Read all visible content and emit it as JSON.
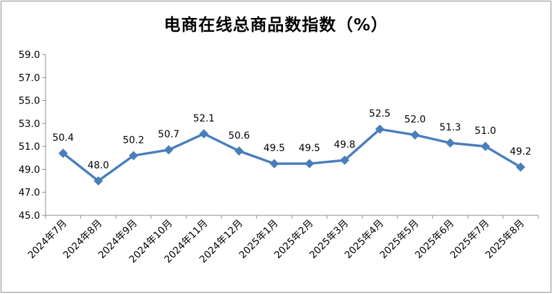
{
  "chart_data": {
    "type": "line",
    "title": "电商在线总商品数指数（%）",
    "categories": [
      "2024年7月",
      "2024年8月",
      "2024年9月",
      "2024年10月",
      "2024年11月",
      "2024年12月",
      "2025年1月",
      "2025年2月",
      "2025年3月",
      "2025年4月",
      "2025年5月",
      "2025年6月",
      "2025年7月",
      "2025年8月"
    ],
    "series": [
      {
        "values": [
          50.4,
          48.0,
          50.2,
          50.7,
          52.1,
          50.6,
          49.5,
          49.5,
          49.8,
          52.5,
          52.0,
          51.3,
          51.0,
          49.2
        ]
      }
    ],
    "value_labels": [
      "50.4",
      "48.0",
      "50.2",
      "50.7",
      "52.1",
      "50.6",
      "49.5",
      "49.5",
      "49.8",
      "52.5",
      "52.0",
      "51.3",
      "51.0",
      "49.2"
    ],
    "y_ticks": [
      "45.0",
      "47.0",
      "49.0",
      "51.0",
      "53.0",
      "55.0",
      "57.0",
      "59.0"
    ],
    "ylim": [
      45,
      59
    ],
    "xlabel": "",
    "ylabel": "",
    "grid": false,
    "legend": "none",
    "line_color": "#4a7ebb",
    "marker": "diamond"
  }
}
